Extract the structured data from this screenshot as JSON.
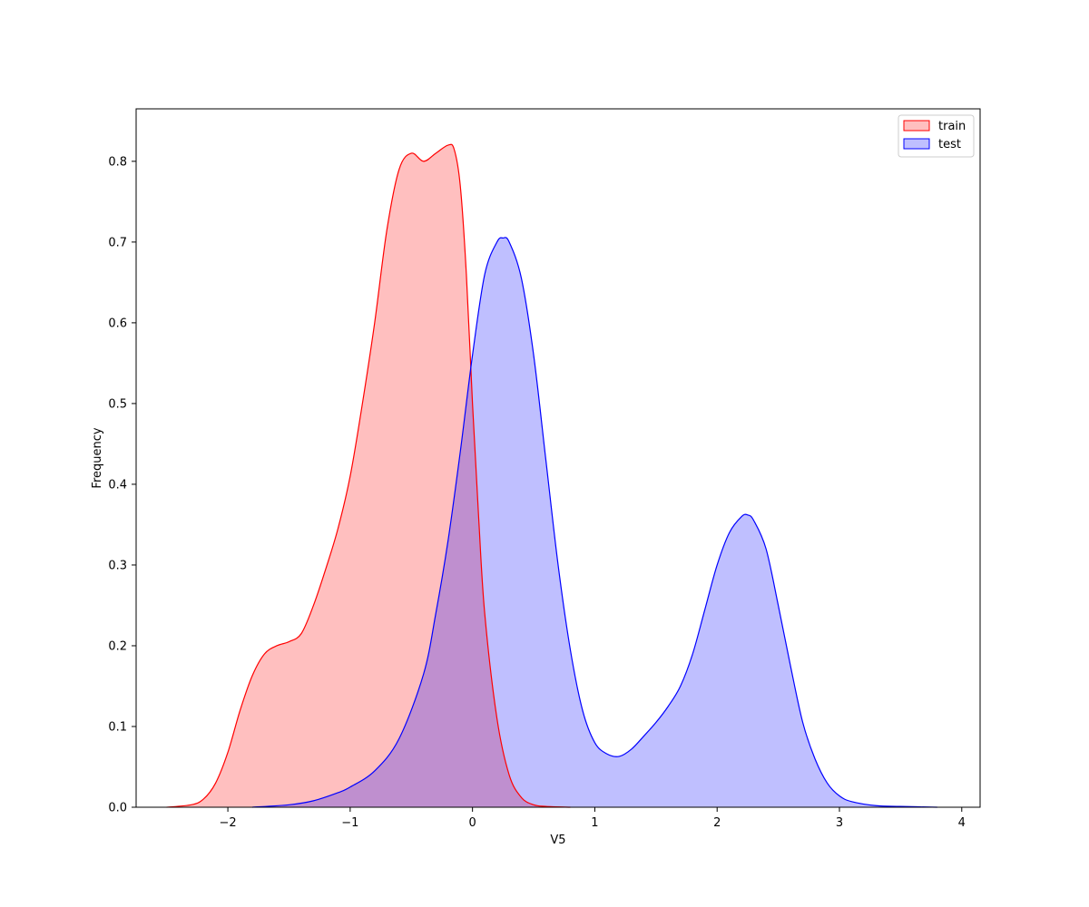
{
  "chart_data": {
    "type": "area",
    "title": "",
    "xlabel": "V5",
    "ylabel": "Frequency",
    "xlim": [
      -2.75,
      4.15
    ],
    "ylim": [
      0,
      0.865
    ],
    "xticks": [
      -2,
      -1,
      0,
      1,
      2,
      3,
      4
    ],
    "xtick_labels": [
      "−2",
      "−1",
      "0",
      "1",
      "2",
      "3",
      "4"
    ],
    "yticks": [
      0.0,
      0.1,
      0.2,
      0.3,
      0.4,
      0.5,
      0.6,
      0.7,
      0.8
    ],
    "ytick_labels": [
      "0.0",
      "0.1",
      "0.2",
      "0.3",
      "0.4",
      "0.5",
      "0.6",
      "0.7",
      "0.8"
    ],
    "grid": false,
    "legend_position": "top-right",
    "series": [
      {
        "name": "train",
        "color": "#ff0000",
        "fill": "#ff0000",
        "fill_opacity": 0.25,
        "x": [
          -2.5,
          -2.3,
          -2.2,
          -2.1,
          -2.0,
          -1.9,
          -1.8,
          -1.7,
          -1.6,
          -1.5,
          -1.4,
          -1.3,
          -1.2,
          -1.1,
          -1.0,
          -0.9,
          -0.8,
          -0.7,
          -0.6,
          -0.5,
          -0.4,
          -0.3,
          -0.2,
          -0.15,
          -0.1,
          -0.05,
          0.0,
          0.05,
          0.1,
          0.2,
          0.3,
          0.4,
          0.5,
          0.6,
          0.8
        ],
        "y": [
          0.0,
          0.003,
          0.01,
          0.03,
          0.068,
          0.12,
          0.163,
          0.19,
          0.2,
          0.205,
          0.215,
          0.25,
          0.295,
          0.345,
          0.41,
          0.5,
          0.6,
          0.715,
          0.79,
          0.81,
          0.8,
          0.81,
          0.82,
          0.815,
          0.77,
          0.66,
          0.5,
          0.36,
          0.24,
          0.11,
          0.04,
          0.012,
          0.003,
          0.001,
          0.0
        ]
      },
      {
        "name": "test",
        "color": "#0000ff",
        "fill": "#0000ff",
        "fill_opacity": 0.25,
        "x": [
          -1.8,
          -1.5,
          -1.3,
          -1.1,
          -1.0,
          -0.8,
          -0.6,
          -0.4,
          -0.3,
          -0.2,
          -0.1,
          0.0,
          0.1,
          0.2,
          0.25,
          0.3,
          0.4,
          0.5,
          0.6,
          0.7,
          0.8,
          0.9,
          1.0,
          1.1,
          1.2,
          1.3,
          1.4,
          1.5,
          1.6,
          1.7,
          1.8,
          1.9,
          2.0,
          2.1,
          2.2,
          2.25,
          2.3,
          2.4,
          2.5,
          2.6,
          2.7,
          2.8,
          2.9,
          3.0,
          3.1,
          3.3,
          3.5,
          3.8
        ],
        "y": [
          0.0,
          0.003,
          0.008,
          0.018,
          0.025,
          0.045,
          0.085,
          0.165,
          0.24,
          0.33,
          0.44,
          0.56,
          0.66,
          0.7,
          0.705,
          0.7,
          0.655,
          0.56,
          0.43,
          0.3,
          0.195,
          0.12,
          0.08,
          0.066,
          0.063,
          0.072,
          0.088,
          0.105,
          0.125,
          0.15,
          0.19,
          0.245,
          0.3,
          0.34,
          0.36,
          0.362,
          0.355,
          0.32,
          0.25,
          0.175,
          0.105,
          0.06,
          0.03,
          0.014,
          0.007,
          0.002,
          0.001,
          0.0
        ]
      }
    ]
  }
}
